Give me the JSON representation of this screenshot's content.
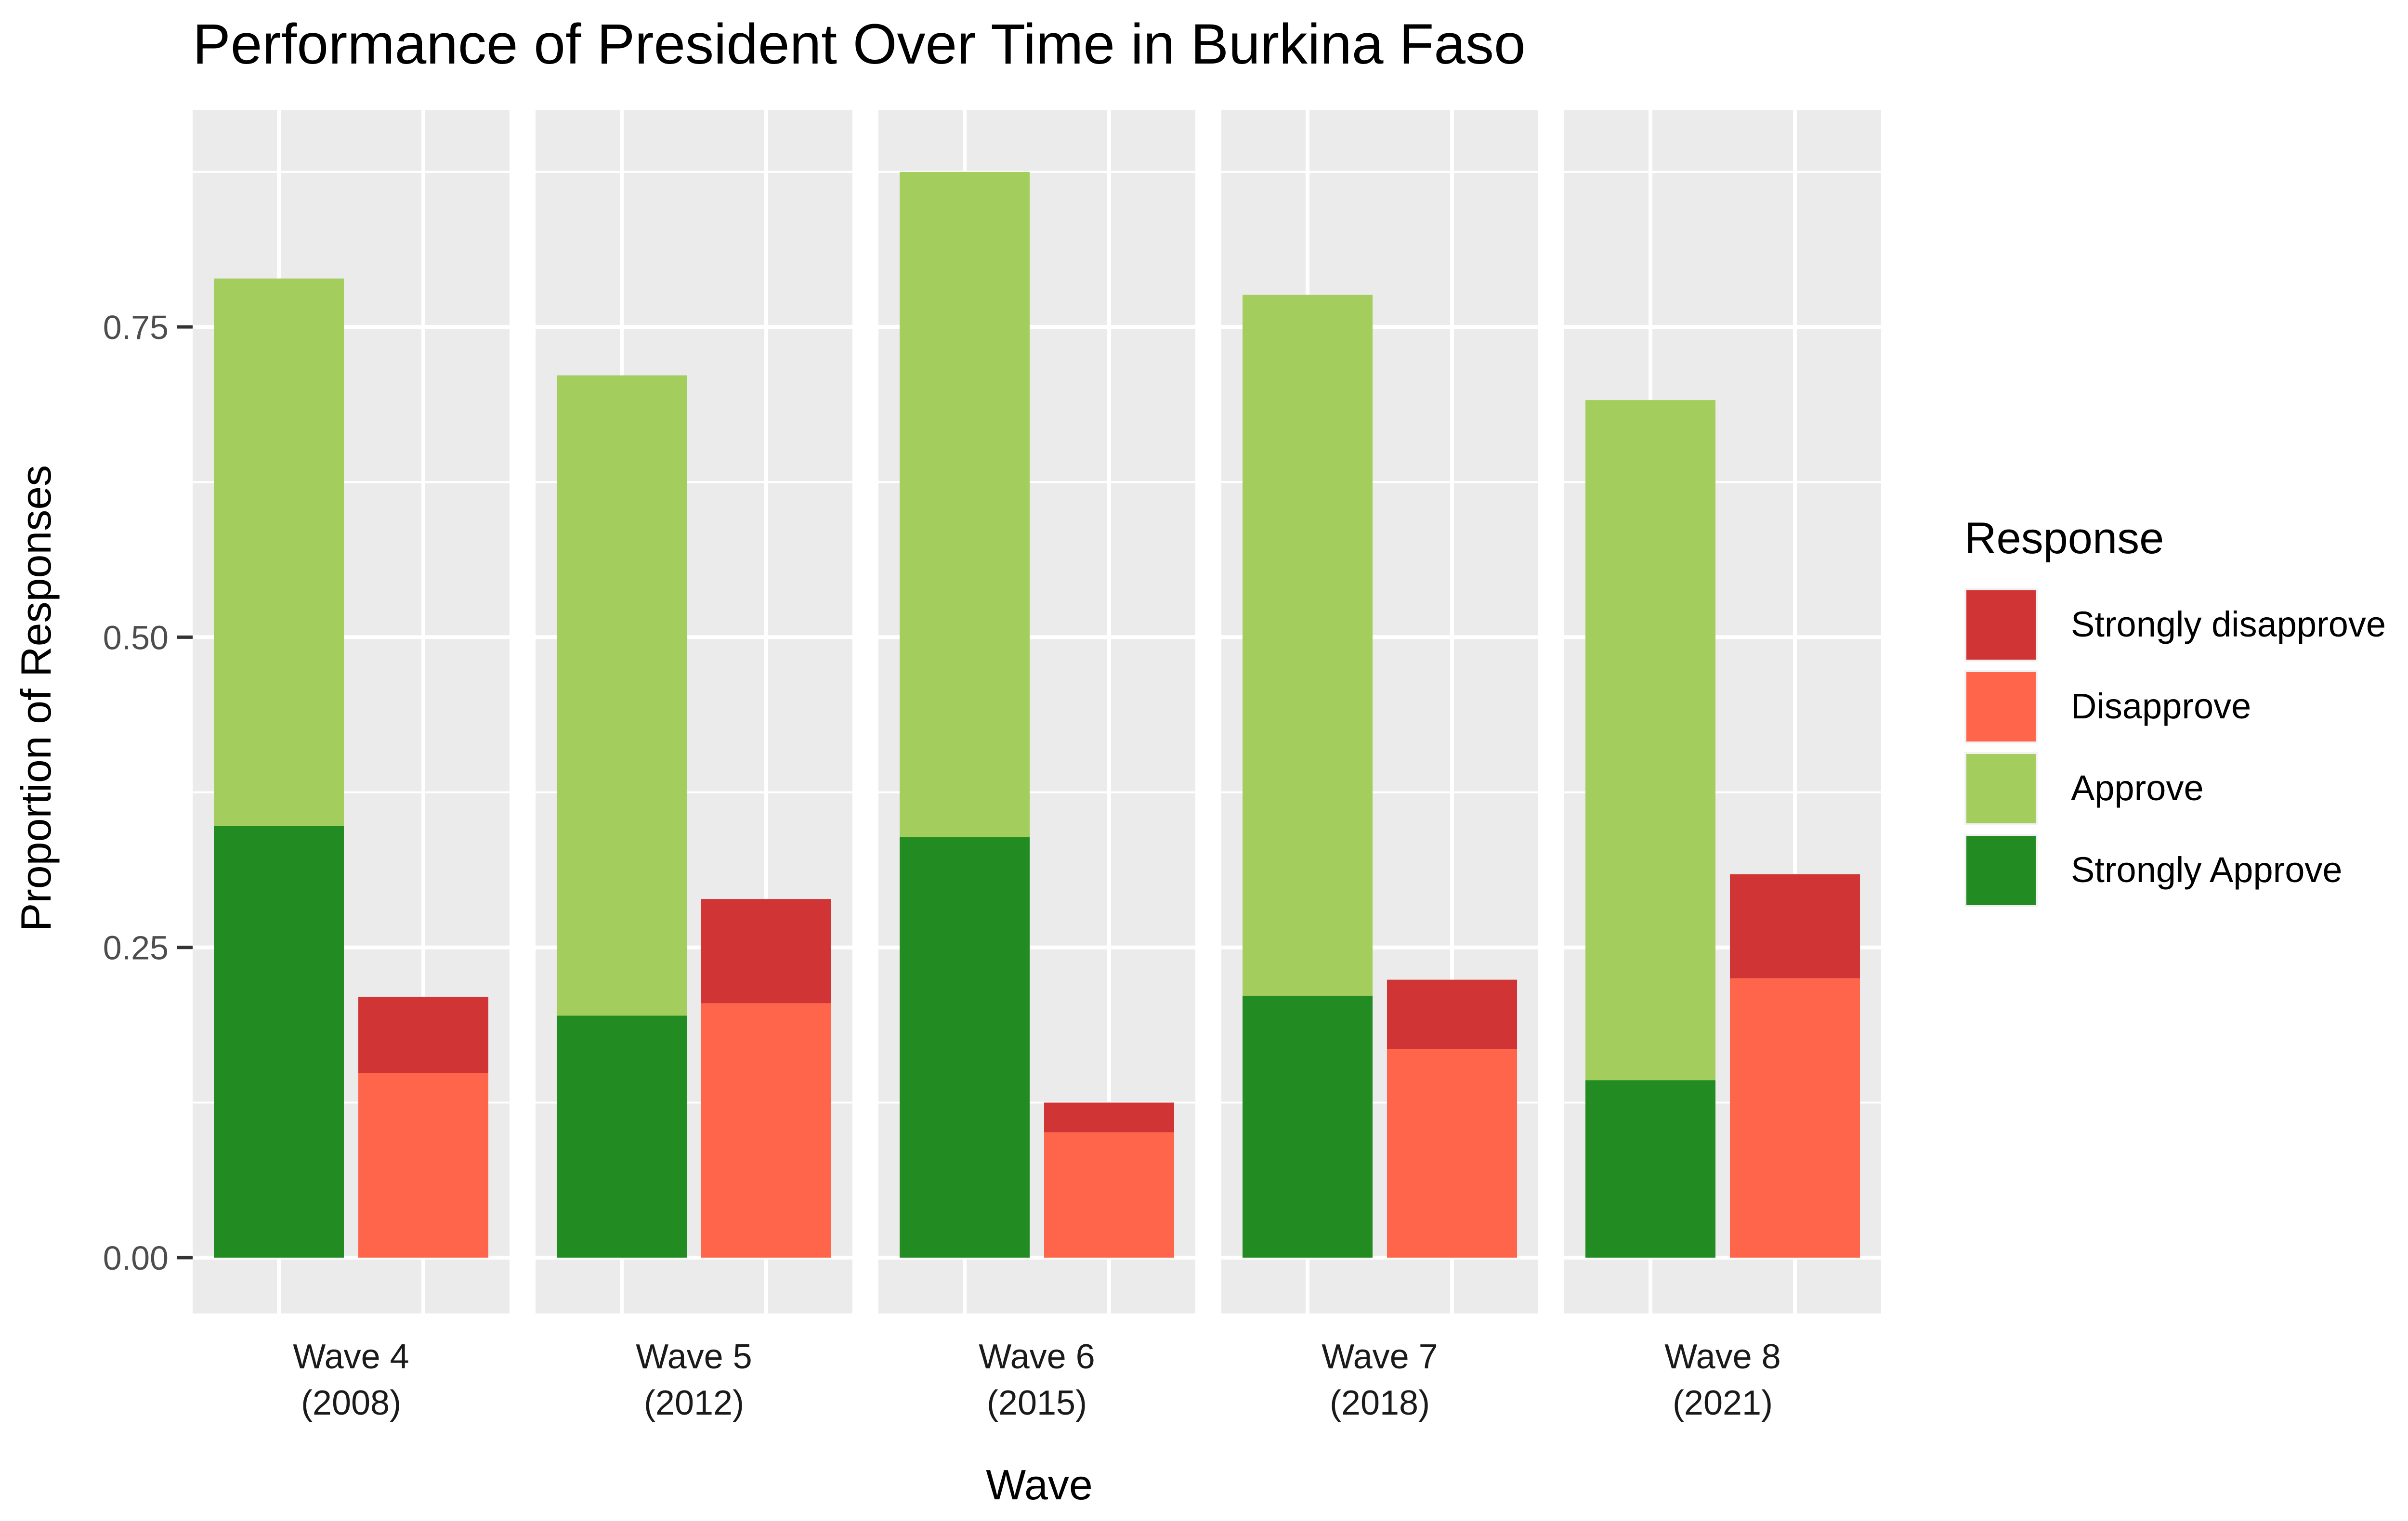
{
  "chart_data": {
    "type": "bar",
    "title": "Performance of President Over Time in Burkina Faso",
    "xlabel": "Wave",
    "ylabel": "Proportion of Responses",
    "ylim": [
      -0.045,
      0.925
    ],
    "yticks": [
      0.0,
      0.25,
      0.5,
      0.75
    ],
    "ytick_labels": [
      "0.00",
      "0.25",
      "0.50",
      "0.75"
    ],
    "grid": true,
    "legend_position": "right",
    "legend": {
      "title": "Response",
      "items": [
        {
          "label": "Strongly disapprove",
          "color": "#D03434"
        },
        {
          "label": "Disapprove",
          "color": "#FF654A"
        },
        {
          "label": "Approve",
          "color": "#A3CD5C"
        },
        {
          "label": "Strongly Approve",
          "color": "#228B22"
        }
      ]
    },
    "panels": [
      {
        "wave": "Wave 4",
        "year": "(2008)",
        "approve_bar": {
          "strongly_approve": 0.348,
          "approve": 0.441
        },
        "disapprove_bar": {
          "disapprove": 0.149,
          "strongly_disapprove": 0.061
        }
      },
      {
        "wave": "Wave 5",
        "year": "(2012)",
        "approve_bar": {
          "strongly_approve": 0.195,
          "approve": 0.516
        },
        "disapprove_bar": {
          "disapprove": 0.205,
          "strongly_disapprove": 0.084
        }
      },
      {
        "wave": "Wave 6",
        "year": "(2015)",
        "approve_bar": {
          "strongly_approve": 0.339,
          "approve": 0.536
        },
        "disapprove_bar": {
          "disapprove": 0.101,
          "strongly_disapprove": 0.024
        }
      },
      {
        "wave": "Wave 7",
        "year": "(2018)",
        "approve_bar": {
          "strongly_approve": 0.211,
          "approve": 0.565
        },
        "disapprove_bar": {
          "disapprove": 0.168,
          "strongly_disapprove": 0.056
        }
      },
      {
        "wave": "Wave 8",
        "year": "(2021)",
        "approve_bar": {
          "strongly_approve": 0.143,
          "approve": 0.548
        },
        "disapprove_bar": {
          "disapprove": 0.225,
          "strongly_disapprove": 0.084
        }
      }
    ]
  }
}
